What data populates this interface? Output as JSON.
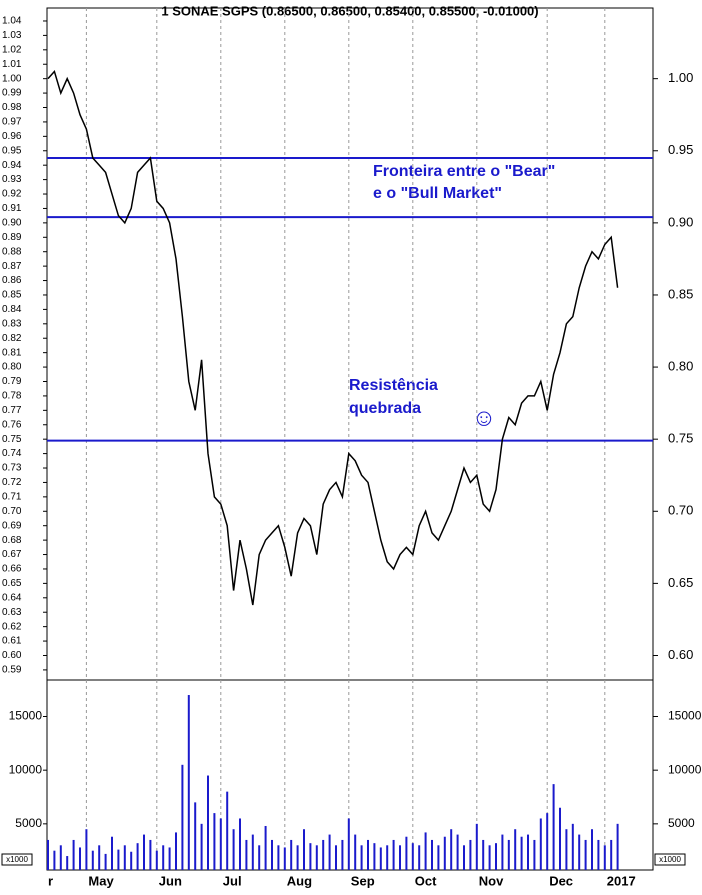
{
  "chart_data": {
    "type": "stock",
    "title": "1 SONAE SGPS (0.86500, 0.86500, 0.85400, 0.85500, -0.01000)",
    "categories": [
      "r",
      null,
      null,
      null,
      null,
      null,
      "May",
      null,
      null,
      null,
      null,
      null,
      null,
      null,
      null,
      null,
      null,
      "Jun",
      null,
      null,
      null,
      null,
      null,
      null,
      null,
      null,
      null,
      "Jul",
      null,
      null,
      null,
      null,
      null,
      null,
      null,
      null,
      null,
      "Aug",
      null,
      null,
      null,
      null,
      null,
      null,
      null,
      null,
      null,
      "Sep",
      null,
      null,
      null,
      null,
      null,
      null,
      null,
      null,
      null,
      "Oct",
      null,
      null,
      null,
      null,
      null,
      null,
      null,
      null,
      null,
      "Nov",
      null,
      null,
      null,
      null,
      null,
      null,
      null,
      null,
      null,
      null,
      "Dec",
      null,
      null,
      null,
      null,
      null,
      null,
      null,
      null,
      "2017",
      null,
      null
    ],
    "series": [
      {
        "color": "#000000",
        "values": [
          1.0,
          1.005,
          0.99,
          1.0,
          0.99,
          0.975,
          0.965,
          0.945,
          0.94,
          0.935,
          0.92,
          0.905,
          0.9,
          0.91,
          0.935,
          0.94,
          0.945,
          0.915,
          0.91,
          0.9,
          0.875,
          0.835,
          0.79,
          0.77,
          0.805,
          0.74,
          0.71,
          0.705,
          0.69,
          0.645,
          0.68,
          0.66,
          0.635,
          0.67,
          0.68,
          0.685,
          0.69,
          0.675,
          0.655,
          0.685,
          0.695,
          0.69,
          0.67,
          0.705,
          0.715,
          0.72,
          0.71,
          0.74,
          0.735,
          0.725,
          0.72,
          0.7,
          0.68,
          0.665,
          0.66,
          0.67,
          0.675,
          0.67,
          0.69,
          0.7,
          0.685,
          0.68,
          0.69,
          0.7,
          0.715,
          0.73,
          0.72,
          0.725,
          0.705,
          0.7,
          0.715,
          0.75,
          0.765,
          0.76,
          0.775,
          0.78,
          0.78,
          0.79,
          0.77,
          0.795,
          0.81,
          0.83,
          0.835,
          0.855,
          0.87,
          0.88,
          0.875,
          0.885,
          0.89,
          0.855
        ]
      },
      {
        "color": "#1a1acc",
        "axis": "volume",
        "values": [
          3500,
          2500,
          3000,
          2000,
          3500,
          2800,
          4500,
          2500,
          3000,
          2200,
          3800,
          2600,
          3000,
          2400,
          3200,
          4000,
          3500,
          2500,
          3000,
          2800,
          4200,
          10500,
          17000,
          7000,
          5000,
          9500,
          6000,
          5500,
          8000,
          4500,
          5500,
          3500,
          4000,
          3000,
          4800,
          3500,
          3000,
          2800,
          3500,
          3000,
          4500,
          3200,
          3000,
          3500,
          4000,
          3000,
          3500,
          5500,
          4000,
          3000,
          3500,
          3200,
          2800,
          3000,
          3500,
          3000,
          3800,
          3200,
          3000,
          4200,
          3500,
          3000,
          3800,
          4500,
          4000,
          3000,
          3500,
          5000,
          3500,
          3000,
          3200,
          4000,
          3500,
          4500,
          3800,
          4000,
          3500,
          5500,
          6000,
          8700,
          6500,
          4500,
          5000,
          4000,
          3500,
          4500,
          3500,
          3000,
          3500,
          5000
        ]
      }
    ],
    "ylim": [
      0.583,
      1.049
    ],
    "yticks": [
      0.59,
      {
        "value": 0.6,
        "label": "0.60"
      },
      0.61,
      0.62,
      0.63,
      0.64,
      0.65,
      0.66,
      0.67,
      0.68,
      0.69,
      {
        "value": 0.7,
        "label": "0.70"
      },
      0.71,
      0.72,
      0.73,
      0.74,
      0.75,
      0.76,
      0.77,
      0.78,
      0.79,
      {
        "value": 0.8,
        "label": "0.80"
      },
      0.81,
      0.82,
      0.83,
      0.84,
      0.85,
      0.86,
      0.87,
      0.88,
      0.89,
      {
        "value": 0.9,
        "label": "0.90"
      },
      0.91,
      0.92,
      0.93,
      0.94,
      0.95,
      0.96,
      0.97,
      0.98,
      0.99,
      {
        "value": 1.0,
        "label": "1.00"
      },
      1.01,
      1.02,
      1.03,
      1.04
    ],
    "y2ticks": [
      {
        "value": 0.6,
        "label": "0.60"
      },
      0.65,
      {
        "value": 0.7,
        "label": "0.70"
      },
      0.75,
      {
        "value": 0.8,
        "label": "0.80"
      },
      0.85,
      {
        "value": 0.9,
        "label": "0.90"
      },
      0.95,
      {
        "value": 1.0,
        "label": "1.00"
      }
    ],
    "volume_lim": [
      700,
      18400
    ],
    "volume_ticks": [
      5000,
      10000,
      15000
    ],
    "volume_unit_label": "x1000",
    "hlines": [
      0.945,
      0.904,
      0.749
    ],
    "hline_color": "#1a1acc",
    "annotations": [
      "Fronteira entre o \"Bear\"",
      "e o \"Bull Market\"",
      "Resistência",
      "quebrada",
      "☺"
    ]
  }
}
